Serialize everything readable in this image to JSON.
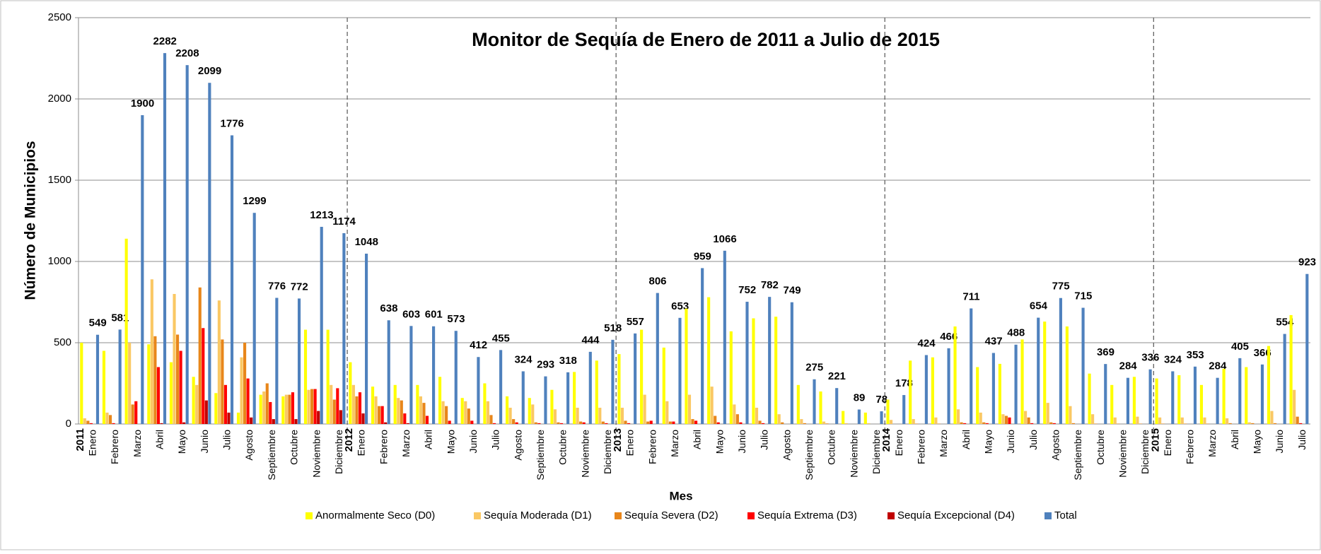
{
  "chart_data": {
    "type": "bar",
    "title": "Monitor de Sequía de Enero de 2011 a Julio de 2015",
    "x_label": "Mes",
    "y_label": "Número  de Municipios",
    "categories": [
      "Enero",
      "Febrero",
      "Marzo",
      "Abril",
      "Mayo",
      "Junio",
      "Julio",
      "Agosto",
      "Septiembre",
      "Octubre",
      "Noviembre",
      "Diciembre",
      "Enero",
      "Febrero",
      "Marzo",
      "Abril",
      "Mayo",
      "Junio",
      "Julio",
      "Agosto",
      "Septiembre",
      "Octubre",
      "Noviembre",
      "Diciembre",
      "Enero",
      "Febrero",
      "Marzo",
      "Abril",
      "Mayo",
      "Junio",
      "Julio",
      "Agosto",
      "Septiembre",
      "Octubre",
      "Noviembre",
      "Diciembre",
      "Enero",
      "Febrero",
      "Marzo",
      "Abril",
      "Mayo",
      "Junio",
      "Julio",
      "Agosto",
      "Septiembre",
      "Octubre",
      "Noviembre",
      "Diciembre",
      "Enero",
      "Febrero",
      "Marzo",
      "Abril",
      "Mayo",
      "Junio",
      "Julio"
    ],
    "year_labels": [
      "2011",
      null,
      null,
      null,
      null,
      null,
      null,
      null,
      null,
      null,
      null,
      null,
      "2012",
      null,
      null,
      null,
      null,
      null,
      null,
      null,
      null,
      null,
      null,
      null,
      "2013",
      null,
      null,
      null,
      null,
      null,
      null,
      null,
      null,
      null,
      null,
      null,
      "2014",
      null,
      null,
      null,
      null,
      null,
      null,
      null,
      null,
      null,
      null,
      null,
      "2015",
      null,
      null,
      null,
      null,
      null,
      null
    ],
    "series": [
      {
        "name": "Anormalmente Seco (D0)",
        "color": "#ffff00",
        "values": [
          500,
          450,
          1140,
          490,
          380,
          290,
          190,
          70,
          180,
          170,
          580,
          580,
          380,
          230,
          240,
          240,
          290,
          160,
          250,
          170,
          160,
          210,
          320,
          390,
          430,
          580,
          470,
          710,
          780,
          570,
          650,
          660,
          240,
          200,
          80,
          70,
          150,
          390,
          410,
          600,
          350,
          370,
          520,
          630,
          600,
          310,
          240,
          290,
          280,
          300,
          240,
          340,
          350,
          480,
          670
        ]
      },
      {
        "name": "Sequía Moderada (D1)",
        "color": "#fac864",
        "values": [
          35,
          70,
          500,
          890,
          800,
          240,
          760,
          410,
          200,
          180,
          210,
          240,
          240,
          170,
          160,
          170,
          140,
          140,
          140,
          100,
          120,
          90,
          100,
          100,
          100,
          180,
          140,
          180,
          230,
          120,
          100,
          60,
          30,
          15,
          5,
          5,
          25,
          30,
          40,
          90,
          70,
          60,
          80,
          130,
          110,
          60,
          40,
          45,
          40,
          40,
          40,
          35,
          10,
          80,
          210
        ]
      },
      {
        "name": "Sequía Severa (D2)",
        "color": "#e8861a",
        "values": [
          20,
          55,
          120,
          540,
          550,
          840,
          520,
          500,
          250,
          180,
          215,
          150,
          170,
          110,
          145,
          130,
          110,
          95,
          55,
          30,
          10,
          10,
          15,
          15,
          20,
          15,
          15,
          30,
          50,
          60,
          20,
          10,
          5,
          3,
          0,
          0,
          0,
          2,
          2,
          10,
          10,
          50,
          40,
          10,
          5,
          2,
          2,
          2,
          2,
          2,
          2,
          5,
          5,
          5,
          45
        ]
      },
      {
        "name": "Sequía Extrema (D3)",
        "color": "#ff0000",
        "values": [
          5,
          5,
          140,
          350,
          450,
          590,
          240,
          280,
          135,
          195,
          215,
          220,
          195,
          110,
          65,
          50,
          20,
          20,
          5,
          10,
          5,
          5,
          10,
          5,
          5,
          20,
          15,
          20,
          10,
          10,
          5,
          0,
          0,
          0,
          0,
          0,
          0,
          0,
          0,
          5,
          5,
          40,
          5,
          5,
          0,
          0,
          0,
          0,
          0,
          0,
          0,
          0,
          0,
          0,
          5
        ]
      },
      {
        "name": "Sequía Excepcional (D4)",
        "color": "#c00000",
        "values": [
          0,
          0,
          0,
          5,
          10,
          145,
          70,
          40,
          30,
          30,
          80,
          85,
          65,
          10,
          5,
          0,
          0,
          0,
          0,
          0,
          0,
          0,
          0,
          0,
          0,
          0,
          0,
          0,
          0,
          0,
          0,
          0,
          0,
          0,
          0,
          0,
          0,
          0,
          0,
          0,
          0,
          0,
          0,
          0,
          0,
          0,
          0,
          0,
          0,
          0,
          0,
          0,
          0,
          0,
          0
        ]
      },
      {
        "name": "Total",
        "color": "#4f81bd",
        "labeled": true,
        "values": [
          549,
          581,
          1900,
          2282,
          2208,
          2099,
          1776,
          1299,
          776,
          772,
          1213,
          1174,
          1048,
          638,
          603,
          601,
          573,
          412,
          455,
          324,
          293,
          318,
          444,
          518,
          557,
          806,
          653,
          959,
          1066,
          752,
          782,
          749,
          275,
          221,
          89,
          78,
          178,
          424,
          466,
          711,
          437,
          488,
          654,
          775,
          715,
          369,
          284,
          336,
          324,
          353,
          284,
          405,
          366,
          554,
          923
        ]
      }
    ],
    "ylim": [
      0,
      2500
    ],
    "yticks": [
      0,
      500,
      1000,
      1500,
      2000,
      2500
    ],
    "grid": true,
    "legend": "bottom"
  }
}
